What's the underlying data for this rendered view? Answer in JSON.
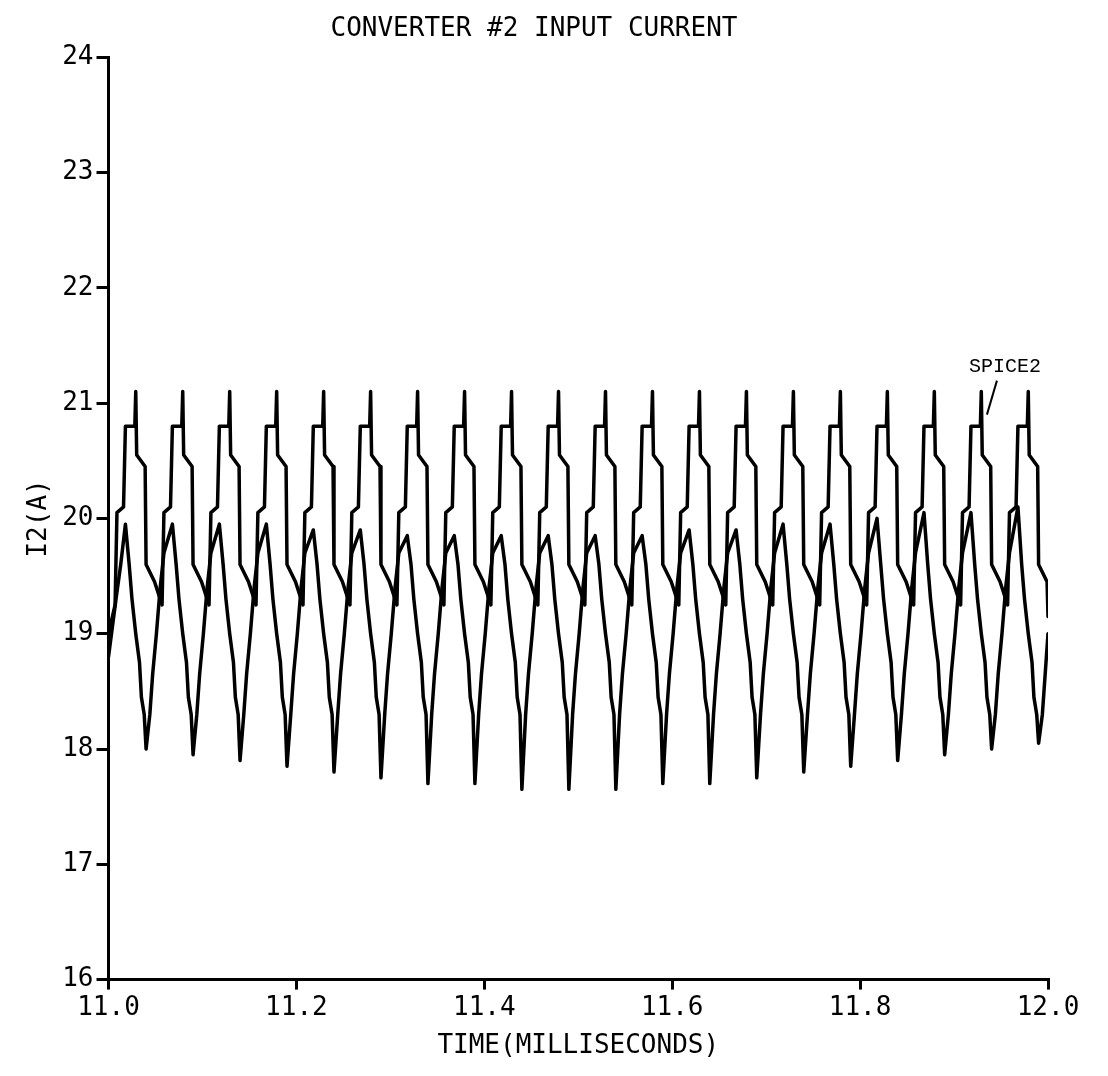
{
  "chart_data": {
    "type": "line",
    "title": "CONVERTER #2 INPUT CURRENT",
    "xlabel": "TIME(MILLISECONDS)",
    "ylabel": "I2(A)",
    "xlim": [
      11,
      12
    ],
    "xticks": [
      {
        "value": 11,
        "label": "11.0"
      },
      11.2,
      11.4,
      11.6,
      11.8,
      {
        "value": 12,
        "label": "12.0"
      }
    ],
    "ylim": [
      16,
      24
    ],
    "yticks": [
      16,
      17,
      18,
      19,
      20,
      21,
      22,
      23,
      24
    ],
    "grid": false,
    "legend": false,
    "marker": "none",
    "line_style": "solid",
    "annotations": [
      {
        "text": "SPICE2",
        "x": 11.935,
        "y": 20.9
      }
    ],
    "series": [
      {
        "color": "#000000",
        "x": [
          11.0,
          11.007,
          11.009,
          11.016,
          11.018,
          11.028,
          11.029,
          11.03,
          11.039,
          11.04,
          11.049,
          11.057,
          11.059,
          11.066,
          11.068,
          11.078,
          11.079,
          11.08,
          11.089,
          11.09,
          11.099,
          11.107,
          11.109,
          11.116,
          11.118,
          11.128,
          11.129,
          11.13,
          11.139,
          11.14,
          11.149,
          11.157,
          11.159,
          11.166,
          11.168,
          11.178,
          11.179,
          11.18,
          11.189,
          11.19,
          11.199,
          11.207,
          11.209,
          11.216,
          11.218,
          11.228,
          11.229,
          11.23,
          11.239,
          11.24,
          11.249,
          11.257,
          11.259,
          11.266,
          11.268,
          11.278,
          11.279,
          11.28,
          11.289,
          11.29,
          11.299,
          11.307,
          11.309,
          11.316,
          11.318,
          11.328,
          11.329,
          11.33,
          11.339,
          11.34,
          11.349,
          11.357,
          11.359,
          11.366,
          11.368,
          11.378,
          11.379,
          11.38,
          11.389,
          11.39,
          11.399,
          11.407,
          11.409,
          11.416,
          11.418,
          11.428,
          11.429,
          11.43,
          11.439,
          11.44,
          11.449,
          11.457,
          11.459,
          11.466,
          11.468,
          11.478,
          11.479,
          11.48,
          11.489,
          11.49,
          11.499,
          11.507,
          11.509,
          11.516,
          11.518,
          11.528,
          11.529,
          11.53,
          11.539,
          11.54,
          11.549,
          11.557,
          11.559,
          11.566,
          11.568,
          11.578,
          11.579,
          11.58,
          11.589,
          11.59,
          11.599,
          11.607,
          11.609,
          11.616,
          11.618,
          11.628,
          11.629,
          11.63,
          11.639,
          11.64,
          11.649,
          11.657,
          11.659,
          11.666,
          11.668,
          11.678,
          11.679,
          11.68,
          11.689,
          11.69,
          11.699,
          11.707,
          11.709,
          11.716,
          11.718,
          11.728,
          11.729,
          11.73,
          11.739,
          11.74,
          11.749,
          11.757,
          11.759,
          11.766,
          11.768,
          11.778,
          11.779,
          11.78,
          11.789,
          11.79,
          11.799,
          11.807,
          11.809,
          11.816,
          11.818,
          11.828,
          11.829,
          11.83,
          11.839,
          11.84,
          11.849,
          11.857,
          11.859,
          11.866,
          11.868,
          11.878,
          11.879,
          11.88,
          11.889,
          11.89,
          11.899,
          11.907,
          11.909,
          11.916,
          11.918,
          11.928,
          11.929,
          11.93,
          11.939,
          11.94,
          11.949,
          11.957,
          11.959,
          11.966,
          11.968,
          11.978,
          11.979,
          11.98,
          11.989,
          11.99,
          11.999,
          12.0
        ],
        "values": [
          19.0,
          19.25,
          20.05,
          20.1,
          20.8,
          20.8,
          21.1,
          20.55,
          20.45,
          19.6,
          19.45,
          19.25,
          20.05,
          20.1,
          20.8,
          20.8,
          21.1,
          20.55,
          20.45,
          19.6,
          19.45,
          19.25,
          20.05,
          20.1,
          20.8,
          20.8,
          21.1,
          20.55,
          20.45,
          19.6,
          19.45,
          19.25,
          20.05,
          20.1,
          20.8,
          20.8,
          21.1,
          20.55,
          20.45,
          19.6,
          19.45,
          19.25,
          20.05,
          20.1,
          20.8,
          20.8,
          21.1,
          20.55,
          20.45,
          19.6,
          19.45,
          19.25,
          20.05,
          20.1,
          20.8,
          20.8,
          21.1,
          20.55,
          20.45,
          19.6,
          19.45,
          19.25,
          20.05,
          20.1,
          20.8,
          20.8,
          21.1,
          20.55,
          20.45,
          19.6,
          19.45,
          19.25,
          20.05,
          20.1,
          20.8,
          20.8,
          21.1,
          20.55,
          20.45,
          19.6,
          19.45,
          19.25,
          20.05,
          20.1,
          20.8,
          20.8,
          21.1,
          20.55,
          20.45,
          19.6,
          19.45,
          19.25,
          20.05,
          20.1,
          20.8,
          20.8,
          21.1,
          20.55,
          20.45,
          19.6,
          19.45,
          19.25,
          20.05,
          20.1,
          20.8,
          20.8,
          21.1,
          20.55,
          20.45,
          19.6,
          19.45,
          19.25,
          20.05,
          20.1,
          20.8,
          20.8,
          21.1,
          20.55,
          20.45,
          19.6,
          19.45,
          19.25,
          20.05,
          20.1,
          20.8,
          20.8,
          21.1,
          20.55,
          20.45,
          19.6,
          19.45,
          19.25,
          20.05,
          20.1,
          20.8,
          20.8,
          21.1,
          20.55,
          20.45,
          19.6,
          19.45,
          19.25,
          20.05,
          20.1,
          20.8,
          20.8,
          21.1,
          20.55,
          20.45,
          19.6,
          19.45,
          19.25,
          20.05,
          20.1,
          20.8,
          20.8,
          21.1,
          20.55,
          20.45,
          19.6,
          19.45,
          19.25,
          20.05,
          20.1,
          20.8,
          20.8,
          21.1,
          20.55,
          20.45,
          19.6,
          19.45,
          19.25,
          20.05,
          20.1,
          20.8,
          20.8,
          21.1,
          20.55,
          20.45,
          19.6,
          19.45,
          19.25,
          20.05,
          20.1,
          20.8,
          20.8,
          21.1,
          20.55,
          20.45,
          19.6,
          19.45,
          19.25,
          20.05,
          20.1,
          20.8,
          20.8,
          21.1,
          20.55,
          20.45,
          19.6,
          19.45,
          19.15
        ]
      },
      {
        "color": "#000000",
        "x": [
          11.0,
          11.008,
          11.013,
          11.018,
          11.022,
          11.025,
          11.029,
          11.033,
          11.035,
          11.038,
          11.04,
          11.044,
          11.047,
          11.051,
          11.055,
          11.059,
          11.068,
          11.072,
          11.075,
          11.079,
          11.083,
          11.085,
          11.088,
          11.09,
          11.094,
          11.097,
          11.101,
          11.105,
          11.109,
          11.118,
          11.122,
          11.125,
          11.129,
          11.133,
          11.135,
          11.138,
          11.14,
          11.144,
          11.147,
          11.151,
          11.155,
          11.159,
          11.168,
          11.172,
          11.175,
          11.179,
          11.183,
          11.185,
          11.188,
          11.19,
          11.194,
          11.197,
          11.201,
          11.205,
          11.209,
          11.218,
          11.222,
          11.225,
          11.229,
          11.233,
          11.235,
          11.238,
          11.24,
          11.244,
          11.247,
          11.251,
          11.255,
          11.259,
          11.268,
          11.272,
          11.275,
          11.279,
          11.283,
          11.285,
          11.288,
          11.29,
          11.294,
          11.297,
          11.301,
          11.305,
          11.309,
          11.318,
          11.322,
          11.325,
          11.329,
          11.333,
          11.335,
          11.338,
          11.34,
          11.344,
          11.347,
          11.351,
          11.355,
          11.359,
          11.368,
          11.372,
          11.375,
          11.379,
          11.383,
          11.385,
          11.388,
          11.39,
          11.394,
          11.397,
          11.401,
          11.405,
          11.409,
          11.418,
          11.422,
          11.425,
          11.429,
          11.433,
          11.435,
          11.438,
          11.44,
          11.444,
          11.447,
          11.451,
          11.455,
          11.459,
          11.468,
          11.472,
          11.475,
          11.479,
          11.483,
          11.485,
          11.488,
          11.49,
          11.494,
          11.497,
          11.501,
          11.505,
          11.509,
          11.518,
          11.522,
          11.525,
          11.529,
          11.533,
          11.535,
          11.538,
          11.54,
          11.544,
          11.547,
          11.551,
          11.555,
          11.559,
          11.568,
          11.572,
          11.575,
          11.579,
          11.583,
          11.585,
          11.588,
          11.59,
          11.594,
          11.597,
          11.601,
          11.605,
          11.609,
          11.618,
          11.622,
          11.625,
          11.629,
          11.633,
          11.635,
          11.638,
          11.64,
          11.644,
          11.647,
          11.651,
          11.655,
          11.659,
          11.668,
          11.672,
          11.675,
          11.679,
          11.683,
          11.685,
          11.688,
          11.69,
          11.694,
          11.697,
          11.701,
          11.705,
          11.709,
          11.718,
          11.722,
          11.725,
          11.729,
          11.733,
          11.735,
          11.738,
          11.74,
          11.744,
          11.747,
          11.751,
          11.755,
          11.759,
          11.768,
          11.772,
          11.775,
          11.779,
          11.783,
          11.785,
          11.788,
          11.79,
          11.794,
          11.797,
          11.801,
          11.805,
          11.809,
          11.818,
          11.822,
          11.825,
          11.829,
          11.833,
          11.835,
          11.838,
          11.84,
          11.844,
          11.847,
          11.851,
          11.855,
          11.859,
          11.868,
          11.872,
          11.875,
          11.879,
          11.883,
          11.885,
          11.888,
          11.89,
          11.894,
          11.897,
          11.901,
          11.905,
          11.909,
          11.918,
          11.922,
          11.925,
          11.929,
          11.933,
          11.935,
          11.938,
          11.94,
          11.944,
          11.947,
          11.951,
          11.955,
          11.959,
          11.968,
          11.972,
          11.975,
          11.979,
          11.983,
          11.985,
          11.988,
          11.99,
          11.994,
          11.997,
          12.0
        ],
        "values": [
          18.8,
          19.3,
          19.6,
          19.95,
          19.6,
          19.3,
          19.0,
          18.75,
          18.45,
          18.3,
          18.0,
          18.3,
          18.65,
          19.0,
          19.4,
          19.7,
          19.95,
          19.6,
          19.3,
          19.0,
          18.75,
          18.45,
          18.3,
          17.95,
          18.3,
          18.65,
          19.0,
          19.4,
          19.7,
          19.95,
          19.6,
          19.3,
          19.0,
          18.75,
          18.45,
          18.3,
          17.9,
          18.3,
          18.65,
          19.0,
          19.4,
          19.7,
          19.95,
          19.6,
          19.3,
          19.0,
          18.75,
          18.45,
          18.3,
          17.85,
          18.3,
          18.65,
          19.0,
          19.4,
          19.7,
          19.9,
          19.6,
          19.3,
          19.0,
          18.75,
          18.45,
          18.3,
          17.8,
          18.3,
          18.65,
          19.0,
          19.4,
          19.7,
          19.9,
          19.6,
          19.3,
          19.0,
          18.75,
          18.45,
          18.3,
          17.75,
          18.3,
          18.65,
          19.0,
          19.4,
          19.7,
          19.85,
          19.6,
          19.3,
          19.0,
          18.75,
          18.45,
          18.3,
          17.7,
          18.3,
          18.65,
          19.0,
          19.4,
          19.7,
          19.85,
          19.6,
          19.3,
          19.0,
          18.75,
          18.45,
          18.3,
          17.7,
          18.3,
          18.65,
          19.0,
          19.4,
          19.7,
          19.85,
          19.6,
          19.3,
          19.0,
          18.75,
          18.45,
          18.3,
          17.65,
          18.3,
          18.65,
          19.0,
          19.4,
          19.7,
          19.85,
          19.6,
          19.3,
          19.0,
          18.75,
          18.45,
          18.3,
          17.65,
          18.3,
          18.65,
          19.0,
          19.4,
          19.7,
          19.85,
          19.6,
          19.3,
          19.0,
          18.75,
          18.45,
          18.3,
          17.65,
          18.3,
          18.65,
          19.0,
          19.4,
          19.7,
          19.85,
          19.6,
          19.3,
          19.0,
          18.75,
          18.45,
          18.3,
          17.7,
          18.3,
          18.65,
          19.0,
          19.4,
          19.7,
          19.9,
          19.6,
          19.3,
          19.0,
          18.75,
          18.45,
          18.3,
          17.7,
          18.3,
          18.65,
          19.0,
          19.4,
          19.7,
          19.9,
          19.6,
          19.3,
          19.0,
          18.75,
          18.45,
          18.3,
          17.75,
          18.3,
          18.65,
          19.0,
          19.4,
          19.7,
          19.95,
          19.6,
          19.3,
          19.0,
          18.75,
          18.45,
          18.3,
          17.8,
          18.3,
          18.65,
          19.0,
          19.4,
          19.7,
          19.95,
          19.6,
          19.3,
          19.0,
          18.75,
          18.45,
          18.3,
          17.85,
          18.3,
          18.65,
          19.0,
          19.4,
          19.7,
          20.0,
          19.6,
          19.3,
          19.0,
          18.75,
          18.45,
          18.3,
          17.9,
          18.3,
          18.65,
          19.0,
          19.4,
          19.7,
          20.05,
          19.6,
          19.3,
          19.0,
          18.75,
          18.45,
          18.3,
          17.95,
          18.3,
          18.65,
          19.0,
          19.4,
          19.7,
          20.05,
          19.6,
          19.3,
          19.0,
          18.75,
          18.45,
          18.3,
          18.0,
          18.3,
          18.65,
          19.0,
          19.4,
          19.7,
          20.1,
          19.6,
          19.3,
          19.0,
          18.75,
          18.45,
          18.3,
          18.05,
          18.3,
          18.65,
          19.0
        ]
      }
    ]
  }
}
